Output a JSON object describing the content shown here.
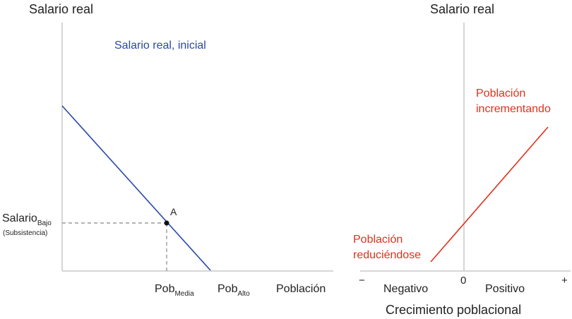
{
  "left_panel": {
    "y_axis_title": "Salario real",
    "curve_label": "Salario real, inicial",
    "point_label": "A",
    "wage_label": "Salario",
    "wage_sub": "Bajo",
    "wage_note": "(Subsistencia)",
    "pob_label": "Pob",
    "pob_media_sub": "Media",
    "pob_alto_sub": "Alto",
    "x_axis_title": "Población"
  },
  "right_panel": {
    "y_axis_title": "Salario real",
    "label_increasing_1": "Población",
    "label_increasing_2": "incrementando",
    "label_decreasing_1": "Población",
    "label_decreasing_2": "reduciéndose",
    "minus": "−",
    "zero": "0",
    "plus": "+",
    "negative": "Negativo",
    "positive": "Positivo",
    "x_axis_title": "Crecimiento poblacional"
  },
  "colors": {
    "curve_blue": "#2a48a8",
    "curve_red": "#e0301e",
    "axis": "#c8c8c8",
    "dash": "#888888"
  }
}
